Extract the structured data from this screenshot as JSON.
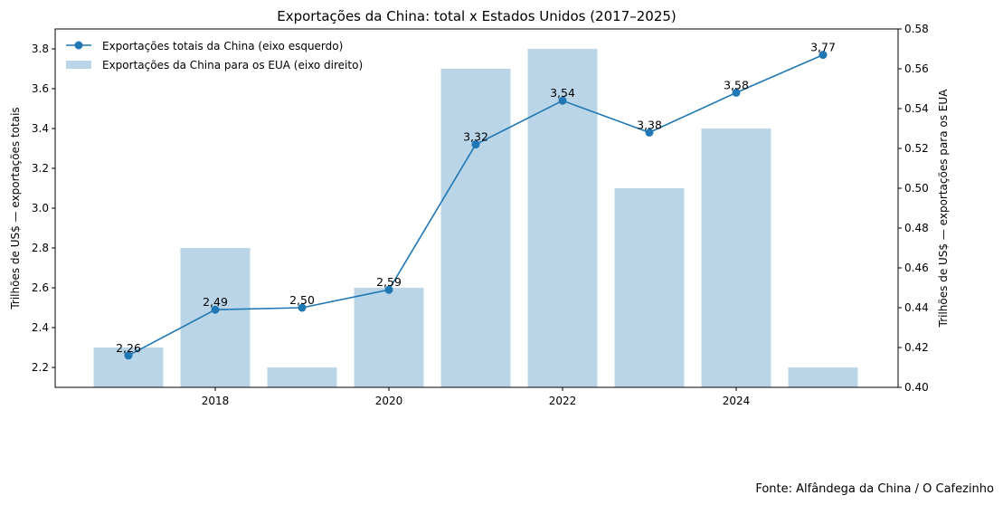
{
  "chart_data": {
    "type": "bar+line",
    "title": "Exportações da China: total x Estados Unidos (2017–2025)",
    "xlabel": "",
    "ylabel_left": "Trilhões de US$ — exportações totais",
    "ylabel_right": "Trilhões de US$ — exportações para os EUA",
    "x": [
      2017,
      2018,
      2019,
      2020,
      2021,
      2022,
      2023,
      2024,
      2025
    ],
    "x_ticks": [
      "2018",
      "2020",
      "2022",
      "2024"
    ],
    "ylim_left": [
      2.1,
      3.9
    ],
    "yticks_left": [
      "2.2",
      "2.4",
      "2.6",
      "2.8",
      "3.0",
      "3.2",
      "3.4",
      "3.6",
      "3.8"
    ],
    "ylim_right": [
      0.4,
      0.58
    ],
    "yticks_right": [
      "0.40",
      "0.42",
      "0.44",
      "0.46",
      "0.48",
      "0.50",
      "0.52",
      "0.54",
      "0.56",
      "0.58"
    ],
    "series": [
      {
        "name": "Exportações totais da China (eixo esquerdo)",
        "type": "line",
        "axis": "left",
        "color": "#1f77b4",
        "values": [
          2.26,
          2.49,
          2.5,
          2.59,
          3.32,
          3.54,
          3.38,
          3.58,
          3.77
        ],
        "labels": [
          "2,26",
          "2,49",
          "2,50",
          "2,59",
          "3,32",
          "3,54",
          "3,38",
          "3,58",
          "3,77"
        ]
      },
      {
        "name": "Exportações da China para os EUA (eixo direito)",
        "type": "bar",
        "axis": "right",
        "color": "#bad5e8",
        "values": [
          0.42,
          0.47,
          0.41,
          0.45,
          0.56,
          0.57,
          0.5,
          0.53,
          0.41
        ]
      }
    ],
    "legend_position": "upper left",
    "grid": false,
    "source": "Fonte: Alfândega da China / O Cafezinho"
  }
}
